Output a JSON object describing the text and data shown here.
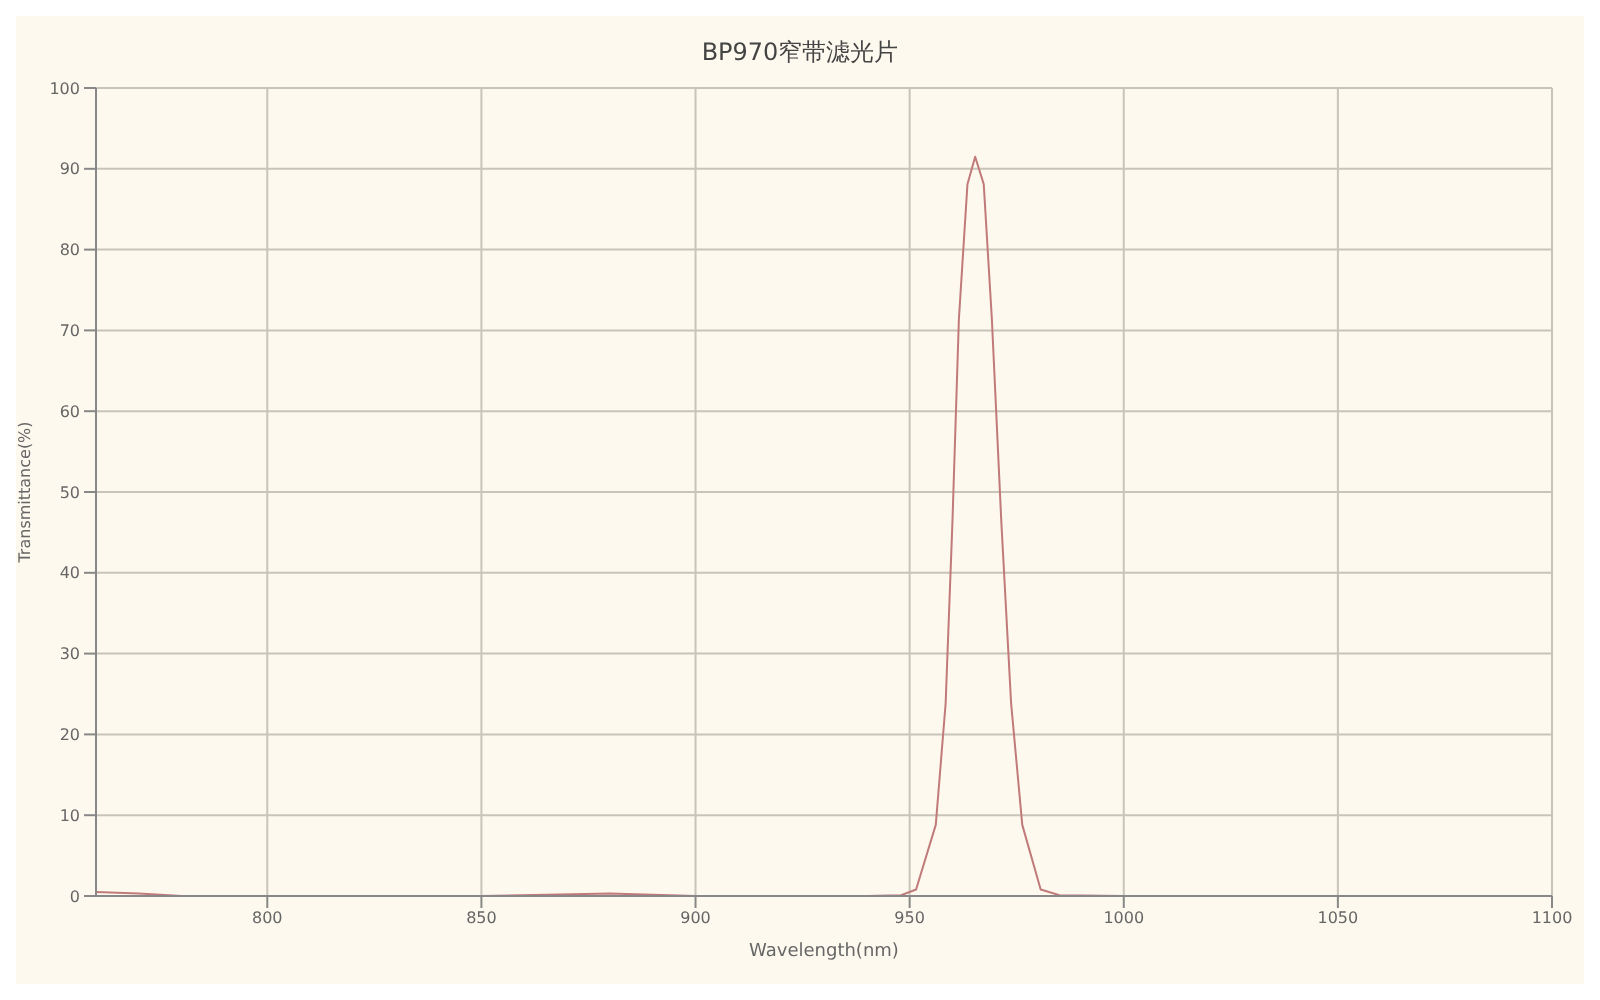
{
  "chart_data": {
    "type": "line",
    "title": "BP970窄带滤光片",
    "xlabel": "Wavelength(nm)",
    "ylabel": "Transmittance(%)",
    "x": [
      760,
      770,
      780,
      800,
      850,
      880,
      900,
      940,
      948,
      951.5,
      956.1,
      958.4,
      960,
      961.5,
      963.5,
      965.3,
      967.3,
      969.2,
      971.4,
      973.7,
      976.3,
      980.6,
      985,
      1000,
      1050,
      1100
    ],
    "series": [
      {
        "color": "#c07a7a",
        "values": [
          0.5,
          0.3,
          0,
          0,
          0,
          0.3,
          0,
          0,
          0.1,
          0.8,
          8.8,
          23.8,
          46.4,
          71.4,
          88.1,
          91.5,
          88.1,
          71.4,
          46.4,
          23.8,
          8.8,
          0.8,
          0.1,
          0,
          0,
          0
        ]
      }
    ],
    "xlim": [
      760,
      1100
    ],
    "xticks": [
      800,
      850,
      900,
      950,
      1000,
      1050,
      1100
    ],
    "ylim": [
      0,
      100
    ],
    "yticks": [
      0,
      10,
      20,
      30,
      40,
      50,
      60,
      70,
      80,
      90,
      100
    ],
    "grid": true,
    "marker": "none",
    "line_style": "solid"
  }
}
